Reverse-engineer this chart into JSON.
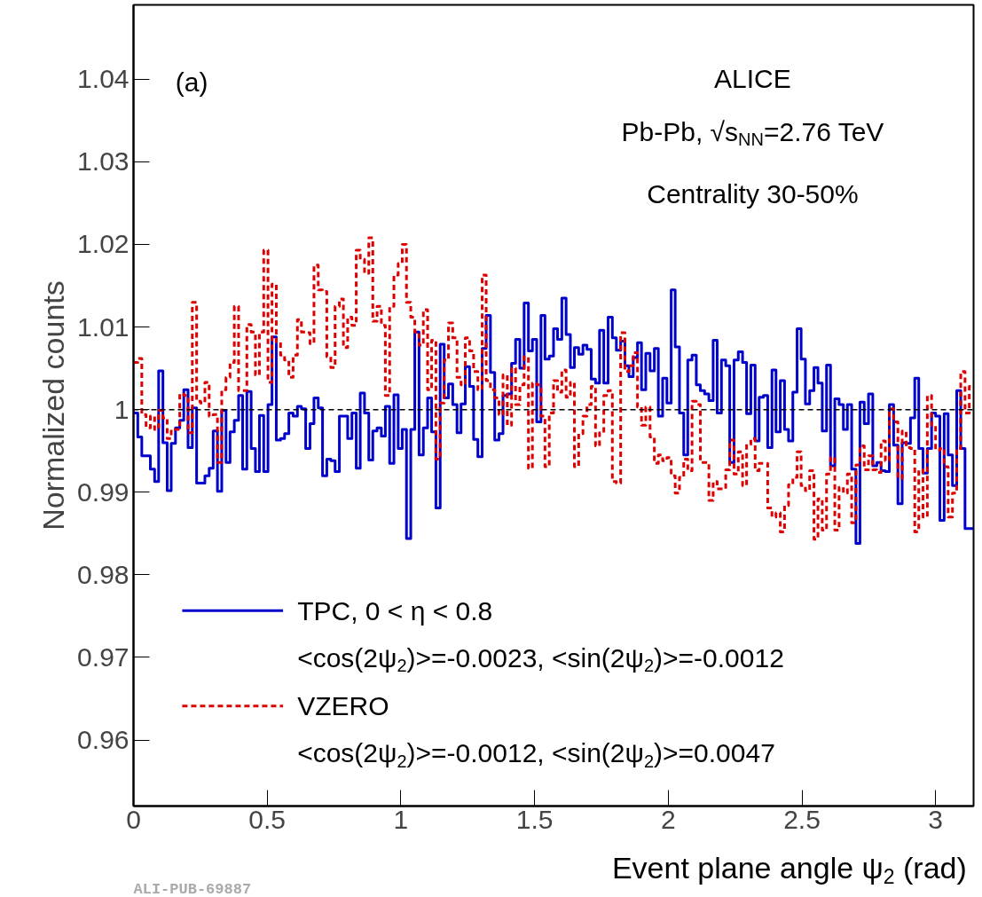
{
  "chart_data": {
    "type": "histogram",
    "xlabel": "Event plane angle ψ$_{2}$ (rad)",
    "ylabel": "Normalized counts",
    "xlim": [
      0,
      3.142
    ],
    "ylim": [
      0.952,
      1.049
    ],
    "xticks": [
      0,
      0.5,
      1,
      1.5,
      2,
      2.5,
      3
    ],
    "yticks": [
      0.96,
      0.97,
      0.98,
      0.99,
      1,
      1.01,
      1.02,
      1.03,
      1.04
    ],
    "grid": false,
    "legend": "bottom left",
    "bins": [
      0,
      0.016,
      0.031,
      0.047,
      0.063,
      0.079,
      0.094,
      0.11,
      0.126,
      0.141,
      0.157,
      0.173,
      0.188,
      0.204,
      0.22,
      0.236,
      0.251,
      0.267,
      0.283,
      0.298,
      0.314,
      0.33,
      0.346,
      0.361,
      0.377,
      0.393,
      0.408,
      0.424,
      0.44,
      0.456,
      0.471,
      0.487,
      0.503,
      0.518,
      0.534,
      0.55,
      0.565,
      0.581,
      0.597,
      0.613,
      0.628,
      0.644,
      0.66,
      0.675,
      0.691,
      0.707,
      0.723,
      0.738,
      0.754,
      0.77,
      0.785,
      0.801,
      0.817,
      0.833,
      0.848,
      0.864,
      0.88,
      0.895,
      0.911,
      0.927,
      0.942,
      0.958,
      0.974,
      0.99,
      1.005,
      1.021,
      1.037,
      1.052,
      1.068,
      1.084,
      1.1,
      1.115,
      1.131,
      1.147,
      1.162,
      1.178,
      1.194,
      1.21,
      1.225,
      1.241,
      1.257,
      1.272,
      1.288,
      1.304,
      1.319,
      1.335,
      1.351,
      1.367,
      1.382,
      1.398,
      1.414,
      1.429,
      1.445,
      1.461,
      1.477,
      1.492,
      1.508,
      1.524,
      1.539,
      1.555,
      1.571,
      1.586,
      1.602,
      1.618,
      1.634,
      1.649,
      1.665,
      1.681,
      1.696,
      1.712,
      1.728,
      1.743,
      1.759,
      1.775,
      1.791,
      1.806,
      1.822,
      1.838,
      1.853,
      1.869,
      1.885,
      1.9,
      1.916,
      1.932,
      1.948,
      1.963,
      1.979,
      1.995,
      2.011,
      2.026,
      2.042,
      2.058,
      2.073,
      2.089,
      2.105,
      2.12,
      2.136,
      2.152,
      2.168,
      2.183,
      2.199,
      2.215,
      2.23,
      2.246,
      2.262,
      2.278,
      2.293,
      2.309,
      2.325,
      2.34,
      2.356,
      2.372,
      2.388,
      2.403,
      2.419,
      2.435,
      2.45,
      2.466,
      2.482,
      2.497,
      2.513,
      2.529,
      2.545,
      2.56,
      2.576,
      2.592,
      2.607,
      2.623,
      2.639,
      2.655,
      2.67,
      2.686,
      2.702,
      2.717,
      2.733,
      2.749,
      2.765,
      2.78,
      2.796,
      2.812,
      2.827,
      2.843,
      2.859,
      2.875,
      2.89,
      2.906,
      2.922,
      2.937,
      2.953,
      2.969,
      2.985,
      3.0,
      3.016,
      3.032,
      3.047,
      3.063,
      3.079,
      3.094,
      3.11,
      3.126,
      3.142
    ],
    "series": [
      {
        "name": "TPC, 0 < η < 0.8",
        "color": "#0000cc",
        "line_style": "solid",
        "values": [
          0.9996,
          0.9967,
          0.9944,
          0.9944,
          0.9928,
          0.9913,
          1.0047,
          0.996,
          0.9902,
          0.9959,
          0.9978,
          0.9987,
          1.0024,
          0.9954,
          1.0002,
          0.9911,
          0.9911,
          0.992,
          0.9929,
          0.9974,
          0.9901,
          0.9999,
          0.9936,
          0.9973,
          0.9987,
          1.0017,
          0.9928,
          1.0022,
          0.9953,
          0.9925,
          0.9993,
          0.9925,
          1.0006,
          1.0088,
          0.9963,
          0.9965,
          0.9971,
          0.9996,
          0.9992,
          1.0004,
          1.0001,
          0.9953,
          0.9983,
          1.0014,
          1.0002,
          0.992,
          0.994,
          0.9938,
          0.9925,
          0.9992,
          0.9992,
          0.9965,
          0.9996,
          0.9929,
          1.002,
          0.9996,
          0.9939,
          0.9974,
          0.9978,
          0.9968,
          1.0004,
          0.9935,
          1.0018,
          0.9953,
          0.9976,
          0.9844,
          0.9976,
          1.0094,
          0.9945,
          0.9978,
          1.0014,
          0.9973,
          0.9881,
          1.0079,
          1.0014,
          1.0031,
          1.0006,
          0.9972,
          1.0007,
          1.0052,
          1.0028,
          0.9964,
          0.9943,
          1.0074,
          1.0114,
          1.0045,
          0.9963,
          0.9971,
          1.0017,
          1.0019,
          1.0056,
          1.0085,
          1.005,
          1.0129,
          1.0071,
          1.0085,
          0.9985,
          1.0114,
          1.0061,
          1.0065,
          1.0098,
          1.0085,
          1.0135,
          1.0091,
          1.0051,
          1.0075,
          1.0067,
          1.0078,
          1.0073,
          1.0037,
          1.0032,
          1.0096,
          1.0032,
          1.0112,
          1.0087,
          1.0072,
          1.0083,
          1.0053,
          1.004,
          1.0063,
          1.0081,
          1.0024,
          1.0068,
          1.0047,
          1.0074,
          0.9992,
          1.0038,
          1.0008,
          1.0145,
          1.0076,
          0.9996,
          0.9945,
          1.006,
          1.0066,
          1.003,
          1.0023,
          1.0019,
          1.0011,
          1.0084,
          0.9996,
          1.006,
          1.0053,
          0.9936,
          1.006,
          1.007,
          1.0057,
          0.9995,
          1.0054,
          0.9962,
          1.0015,
          1.0017,
          0.9954,
          1.0048,
          0.9973,
          1.0035,
          0.9976,
          0.9962,
          1.0021,
          1.0098,
          1.0061,
          1.0007,
          1.0023,
          1.0051,
          1.0032,
          0.9974,
          1.0054,
          0.9932,
          1.0013,
          1.0006,
          0.9976,
          1.0006,
          0.9928,
          0.9838,
          1.0009,
          0.9983,
          1.0019,
          0.9932,
          0.9936,
          0.9926,
          0.9925,
          1.0006,
          0.9957,
          0.9886,
          0.996,
          0.9959,
          0.999,
          1.0038,
          0.9953,
          0.9923,
          0.9953,
          0.9996,
          0.9992,
          0.9866,
          0.9995,
          0.9945,
          0.9908,
          1.0023,
          0.9953,
          0.9856,
          0.9856
        ]
      },
      {
        "name": "VZERO",
        "color": "#dd0000",
        "line_style": "dashed",
        "values": [
          1.0057,
          1.0062,
          0.9994,
          0.9978,
          0.9992,
          0.9976,
          0.9999,
          0.999,
          0.9965,
          0.9976,
          0.9976,
          1.0019,
          1.0017,
          0.9972,
          1.013,
          1.001,
          1.0008,
          1.0033,
          0.9992,
          0.9994,
          0.9936,
          1.0024,
          1.0039,
          1.0057,
          1.0125,
          1.0023,
          1.0023,
          1.0103,
          1.0094,
          1.0042,
          1.0094,
          1.0193,
          1.0033,
          1.0152,
          1.0082,
          1.0066,
          1.006,
          1.0039,
          1.0066,
          1.0109,
          1.0094,
          1.0093,
          1.008,
          1.0175,
          1.0145,
          1.0143,
          1.0064,
          1.0051,
          1.0125,
          1.0134,
          1.0075,
          1.0112,
          1.0102,
          1.0193,
          1.0182,
          1.0165,
          1.0208,
          1.0107,
          1.0125,
          1.0102,
          1.0017,
          1.0125,
          1.0163,
          1.0177,
          1.02,
          1.013,
          1.0112,
          1.0094,
          1.0078,
          1.0121,
          1.0024,
          1.0084,
          0.994,
          1.0008,
          1.006,
          1.0105,
          1.0087,
          1.0039,
          1.003,
          1.0087,
          1.0071,
          1.0046,
          1.0024,
          1.0163,
          1.0035,
          1.0024,
          1.0014,
          0.9994,
          1.0042,
          0.9981,
          1.005,
          1.0006,
          1.003,
          1.0064,
          0.9929,
          1.0032,
          1.003,
          0.9992,
          0.9931,
          0.9996,
          1.0035,
          1.0021,
          1.0048,
          1.0015,
          1.0033,
          0.9931,
          0.9971,
          0.9992,
          1.0006,
          1.0028,
          0.9956,
          0.9972,
          1.0017,
          1.0023,
          0.9913,
          0.9911,
          1.0093,
          1.0046,
          1.0053,
          1.0069,
          1.0003,
          0.9981,
          1.0003,
          0.9967,
          0.9935,
          0.9945,
          0.9938,
          0.9942,
          0.992,
          0.9899,
          0.9918,
          0.994,
          0.9926,
          1.001,
          1.0006,
          0.9936,
          0.9936,
          0.989,
          0.9913,
          0.9904,
          0.9904,
          0.9927,
          0.9963,
          0.9922,
          0.9949,
          0.9908,
          0.9958,
          0.9965,
          0.9926,
          0.9935,
          0.9935,
          0.9881,
          0.987,
          0.9875,
          0.9852,
          0.9884,
          0.9909,
          0.9918,
          0.9949,
          0.9908,
          0.9902,
          0.9926,
          0.9843,
          0.9892,
          0.9854,
          0.9922,
          0.9942,
          0.9854,
          0.9906,
          0.9899,
          0.9922,
          0.9863,
          0.9933,
          0.9956,
          0.9927,
          0.9944,
          0.9927,
          0.9924,
          0.9962,
          0.9938,
          1.0001,
          0.9985,
          0.9917,
          0.9974,
          0.9954,
          0.9953,
          0.9852,
          0.9927,
          0.987,
          1.0017,
          0.9981,
          0.9951,
          0.9953,
          0.9931,
          0.987,
          0.9899,
          0.9953,
          1.0046,
          0.9996,
          1.0028
        ]
      }
    ],
    "ref_lines": [
      {
        "axis": "y",
        "value": 1,
        "color": "#000000",
        "line_style": "dashed"
      }
    ],
    "annotations": [
      "(a)",
      "ALICE",
      "Pb-Pb, √s$_{NN}$=2.76 TeV",
      "Centrality 30-50%",
      "<cos(2ψ$_{2}$)>=-0.0023, <sin(2ψ$_{2}$)>=-0.0012",
      "<cos(2ψ$_{2}$)>=-0.0012, <sin(2ψ$_{2}$)>=0.0047",
      "ALI-PUB-69887"
    ]
  }
}
